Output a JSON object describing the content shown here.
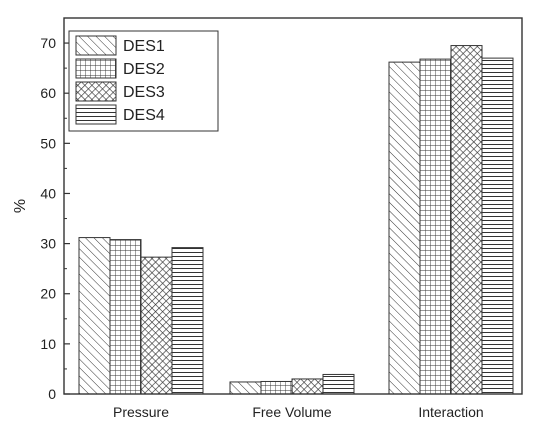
{
  "chart_data": {
    "type": "bar",
    "categories": [
      "Pressure",
      "Free Volume",
      "Interaction"
    ],
    "series": [
      {
        "name": "DES1",
        "values": [
          31.2,
          2.4,
          66.2
        ],
        "pattern": "diag"
      },
      {
        "name": "DES2",
        "values": [
          30.8,
          2.5,
          66.8
        ],
        "pattern": "grid"
      },
      {
        "name": "DES3",
        "values": [
          27.3,
          3.0,
          69.5
        ],
        "pattern": "cross"
      },
      {
        "name": "DES4",
        "values": [
          29.2,
          3.9,
          67.0
        ],
        "pattern": "horiz"
      }
    ],
    "ylabel": "%",
    "ylim": [
      0,
      75
    ],
    "yticks": [
      0,
      10,
      20,
      30,
      40,
      50,
      60,
      70
    ],
    "legend_position": "top-left",
    "grid": false,
    "colors": {
      "stroke": "#333333",
      "background": "#ffffff"
    }
  }
}
